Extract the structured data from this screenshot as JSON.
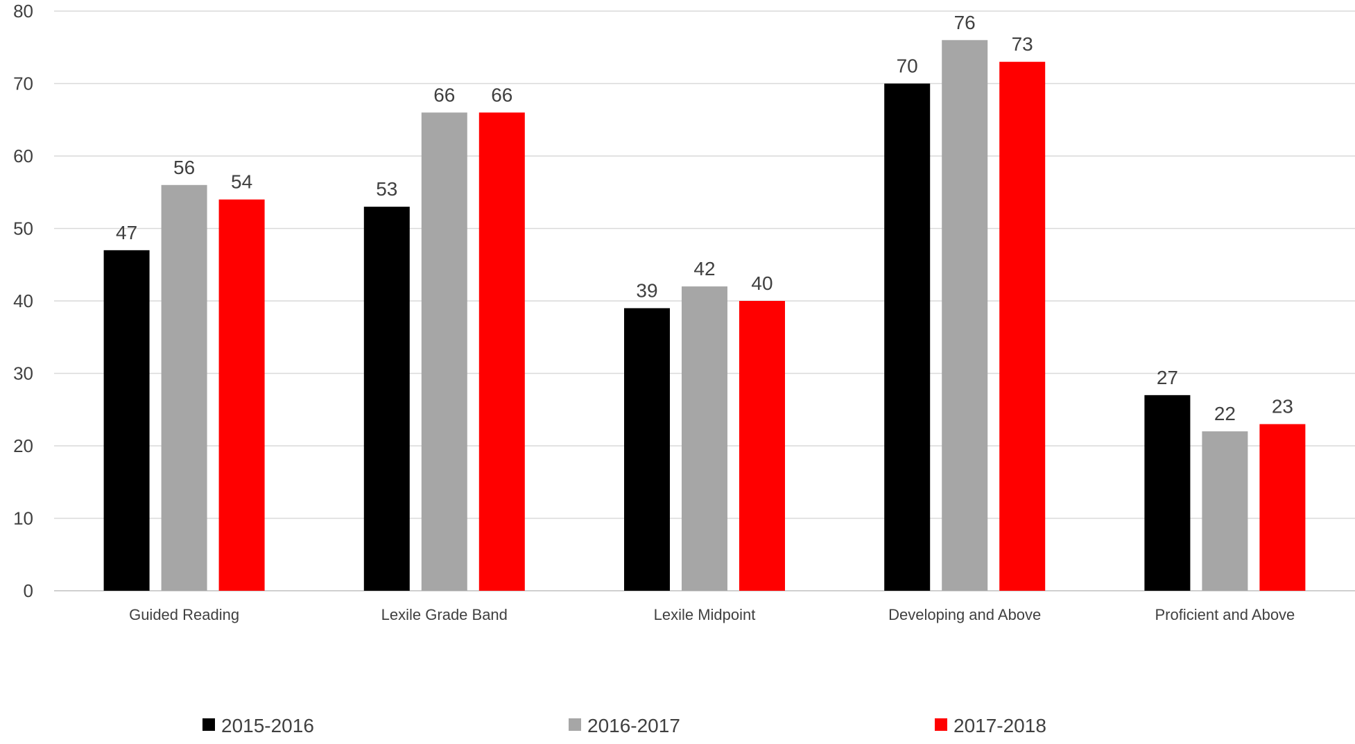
{
  "chart_data": {
    "type": "bar",
    "title": "",
    "xlabel": "",
    "ylabel": "",
    "ylim": [
      0,
      80
    ],
    "yticks": [
      0,
      10,
      20,
      30,
      40,
      50,
      60,
      70,
      80
    ],
    "grid": true,
    "legend": "bottom",
    "categories": [
      "Guided Reading",
      "Lexile Grade Band",
      "Lexile Midpoint",
      "Developing and Above",
      "Proficient and Above"
    ],
    "series": [
      {
        "name": "2015-2016",
        "color": "#000000",
        "values": [
          47,
          53,
          39,
          70,
          27
        ]
      },
      {
        "name": "2016-2017",
        "color": "#a6a6a6",
        "values": [
          56,
          66,
          42,
          76,
          22
        ]
      },
      {
        "name": "2017-2018",
        "color": "#ff0000",
        "values": [
          54,
          66,
          40,
          73,
          23
        ]
      }
    ]
  }
}
